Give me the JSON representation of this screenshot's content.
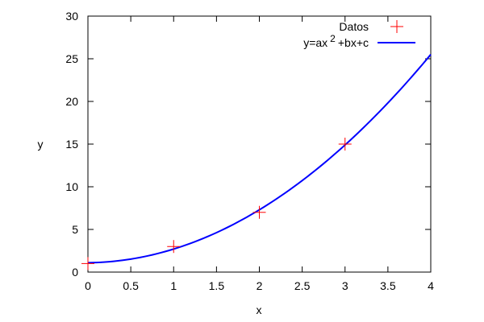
{
  "chart_data": {
    "type": "scatter",
    "xlabel": "x",
    "ylabel": "y",
    "xlim": [
      0,
      4
    ],
    "ylim": [
      0,
      30
    ],
    "xticks": [
      "0",
      "0.5",
      "1",
      "1.5",
      "2",
      "2.5",
      "3",
      "3.5",
      "4"
    ],
    "yticks": [
      "0",
      "5",
      "10",
      "15",
      "20",
      "25",
      "30"
    ],
    "legend_position": "top-right",
    "grid": false,
    "series": [
      {
        "name": "Datos",
        "kind": "points",
        "color": "#ff0000",
        "marker": "plus",
        "x": [
          0,
          1,
          2,
          3
        ],
        "y": [
          1,
          3,
          7,
          15
        ]
      },
      {
        "name": "y=ax 2 +bx+c",
        "name_parts": [
          "y=ax",
          "2",
          "+bx+c"
        ],
        "kind": "line",
        "color": "#0000ff",
        "coefficients": {
          "a": 1.5,
          "b": 0.1,
          "c": 1.1
        }
      }
    ]
  }
}
